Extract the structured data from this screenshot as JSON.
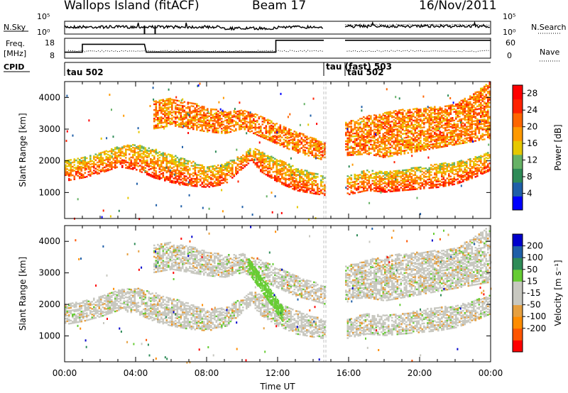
{
  "header": {
    "station": "Wallops Island (fitACF)",
    "beam": "Beam 17",
    "date": "16/Nov/2011"
  },
  "colors": {
    "power": [
      "#0000ff",
      "#1f5fa8",
      "#2e8b57",
      "#66b266",
      "#e6c800",
      "#ff9900",
      "#ff6600",
      "#ff2200",
      "#ff0000"
    ],
    "velocity": [
      "#ff0000",
      "#ff5500",
      "#ff8c00",
      "#e6a040",
      "#c8c8c0",
      "#c8c8c0",
      "#66cc33",
      "#2e8b57",
      "#1f5fa8",
      "#0000cc"
    ]
  },
  "chart_data": [
    {
      "type": "line",
      "panel": "noise",
      "left_label": "N.Sky",
      "left_ticks": [
        "10^5",
        "10^0"
      ],
      "right_label": "N.Search",
      "right_ticks": [
        "10^5",
        "10^0"
      ],
      "series": [
        {
          "name": "N.Sky",
          "style": "solid"
        },
        {
          "name": "N.Search",
          "style": "dotted"
        }
      ],
      "gap_hours": [
        14.6,
        15.8
      ]
    },
    {
      "type": "line",
      "panel": "frequency",
      "left_label": "Freq.",
      "left_unit": "[MHz]",
      "left_ticks": [
        "18",
        "8"
      ],
      "right_label": "Nave",
      "right_ticks": [
        "60",
        "0"
      ],
      "series": [
        {
          "name": "Freq",
          "style": "solid",
          "x": [
            0,
            1,
            1,
            4.5,
            4.6,
            4.6,
            11.9,
            11.9,
            14.6,
            15.8,
            24
          ],
          "y": [
            11,
            11,
            15,
            15,
            11,
            11,
            11,
            17,
            17,
            17,
            17
          ]
        },
        {
          "name": "Nave",
          "style": "dotted"
        }
      ],
      "gap_hours": [
        14.6,
        15.8
      ]
    },
    {
      "type": "label_strip",
      "panel": "cpid",
      "label": "CPID",
      "segments": [
        {
          "start_hour": 0,
          "label": "tau 502"
        },
        {
          "start_hour": 14.6,
          "label": "tau (fast) 503"
        },
        {
          "start_hour": 15.8,
          "label": "tau 502"
        }
      ]
    },
    {
      "type": "heatmap",
      "panel": "power",
      "ylabel": "Slant Range [km]",
      "ylim": [
        180,
        4500
      ],
      "yticks": [
        1000,
        2000,
        3000,
        4000
      ],
      "xlim": [
        0,
        24
      ],
      "colorbar_label": "Power [dB]",
      "colorbar_ticks": [
        4,
        8,
        12,
        16,
        20,
        24,
        28
      ],
      "colorbar_range": [
        0,
        30
      ],
      "gap_hours": [
        14.6,
        15.8
      ],
      "bands": [
        {
          "x": [
            0,
            1,
            2,
            3,
            4,
            5,
            6,
            7,
            8,
            9,
            10,
            10.5,
            11,
            12,
            13,
            14,
            14.6,
            15.8,
            17,
            18,
            19,
            20,
            21,
            22,
            23,
            24
          ],
          "lo": [
            1350,
            1450,
            1600,
            1800,
            1700,
            1450,
            1300,
            1200,
            1150,
            1250,
            1750,
            2000,
            1650,
            1300,
            1050,
            950,
            900,
            900,
            1050,
            1000,
            1050,
            1100,
            1150,
            1250,
            1450,
            1700
          ],
          "hi": [
            2000,
            2100,
            2250,
            2450,
            2500,
            2350,
            2200,
            2000,
            1800,
            1900,
            2200,
            2400,
            2300,
            2050,
            1800,
            1600,
            1500,
            1500,
            1700,
            1650,
            1700,
            1800,
            1900,
            1950,
            2100,
            2300
          ],
          "db": 24
        },
        {
          "x": [
            5,
            6,
            7,
            8,
            9,
            10,
            11,
            12,
            13,
            14,
            14.6
          ],
          "lo": [
            3000,
            3100,
            3000,
            2900,
            2850,
            3000,
            2750,
            2500,
            2250,
            2100,
            2000
          ],
          "hi": [
            3900,
            3950,
            3850,
            3650,
            3550,
            3600,
            3400,
            3150,
            2900,
            2700,
            2550
          ],
          "db": 22
        },
        {
          "x": [
            15.8,
            17,
            18,
            19,
            20,
            21,
            22,
            23,
            24
          ],
          "lo": [
            2150,
            2200,
            2100,
            2200,
            2300,
            2400,
            2500,
            2600,
            2700
          ],
          "hi": [
            3200,
            3400,
            3500,
            3600,
            3650,
            3700,
            3800,
            4100,
            4500
          ],
          "db": 22
        }
      ]
    },
    {
      "type": "heatmap",
      "panel": "velocity",
      "ylabel": "Slant Range [km]",
      "ylim": [
        180,
        4500
      ],
      "yticks": [
        1000,
        2000,
        3000,
        4000
      ],
      "xlim": [
        0,
        24
      ],
      "xticks": [
        "00:00",
        "04:00",
        "08:00",
        "12:00",
        "16:00",
        "20:00",
        "00:00"
      ],
      "xlabel": "Time UT",
      "colorbar_label": "Velocity [m s⁻¹]",
      "colorbar_ticks": [
        200,
        100,
        50,
        15,
        -15,
        -50,
        -100,
        -200
      ],
      "gap_hours": [
        14.6,
        15.8
      ],
      "bands": [
        {
          "x": [
            0,
            1,
            2,
            3,
            4,
            5,
            6,
            7,
            8,
            9,
            10,
            10.5,
            11,
            12,
            13,
            14,
            14.6,
            15.8,
            17,
            18,
            19,
            20,
            21,
            22,
            23,
            24
          ],
          "lo": [
            1350,
            1450,
            1600,
            1800,
            1700,
            1450,
            1300,
            1200,
            1150,
            1250,
            1750,
            2000,
            1650,
            1300,
            1050,
            950,
            900,
            900,
            1050,
            1000,
            1050,
            1100,
            1150,
            1250,
            1450,
            1700
          ],
          "hi": [
            2000,
            2100,
            2250,
            2450,
            2500,
            2350,
            2200,
            2000,
            1800,
            1900,
            2200,
            2400,
            2300,
            2050,
            1800,
            1600,
            1500,
            1500,
            1700,
            1650,
            1700,
            1800,
            1900,
            1950,
            2100,
            2300
          ],
          "vel": 0
        },
        {
          "x": [
            5,
            6,
            7,
            8,
            9,
            10,
            11,
            12,
            13,
            14,
            14.6
          ],
          "lo": [
            3000,
            3100,
            3000,
            2900,
            2850,
            3000,
            2750,
            2500,
            2250,
            2100,
            2000
          ],
          "hi": [
            3900,
            3950,
            3850,
            3650,
            3550,
            3600,
            3400,
            3150,
            2900,
            2700,
            2550
          ],
          "vel": 0
        },
        {
          "x": [
            15.8,
            17,
            18,
            19,
            20,
            21,
            22,
            23,
            24
          ],
          "lo": [
            2150,
            2200,
            2100,
            2200,
            2300,
            2400,
            2500,
            2600,
            2700
          ],
          "hi": [
            3200,
            3400,
            3500,
            3600,
            3650,
            3700,
            3800,
            4100,
            4500
          ],
          "vel": 0
        }
      ],
      "feature": {
        "name": "eastward moving band",
        "x": [
          10.3,
          12.3
        ],
        "range_start": [
          3300,
          1700
        ],
        "vel": 40
      }
    }
  ]
}
